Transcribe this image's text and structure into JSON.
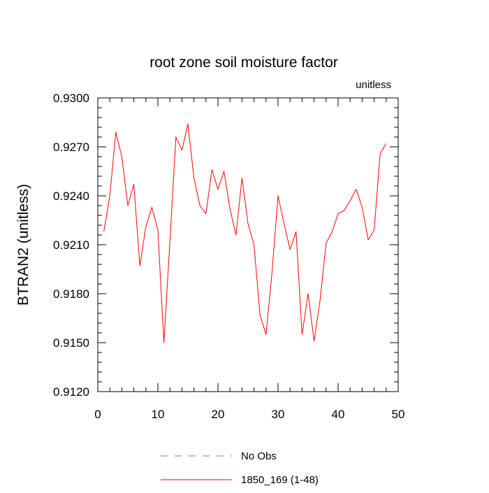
{
  "chart_data": {
    "type": "line",
    "title": "root zone soil moisture factor",
    "units_label": "unitless",
    "ylabel": "BTRAN2  (unitless)",
    "xlabel": "",
    "xlim": [
      0,
      50
    ],
    "ylim": [
      0.912,
      0.93
    ],
    "x_ticks": [
      0,
      10,
      20,
      30,
      40,
      50
    ],
    "y_ticks": [
      0.912,
      0.915,
      0.918,
      0.921,
      0.924,
      0.927,
      0.93
    ],
    "y_tick_labels": [
      "0.9120",
      "0.9150",
      "0.9180",
      "0.9210",
      "0.9240",
      "0.9270",
      "0.9300"
    ],
    "legend": [
      {
        "label": "No Obs",
        "color": "#6b6bff",
        "style": "dashed"
      },
      {
        "label": "1850_169 (1-48)",
        "color": "#ff0000",
        "style": "solid"
      }
    ],
    "series": [
      {
        "name": "1850_169 (1-48)",
        "color": "#ff0000",
        "x": [
          1,
          2,
          3,
          4,
          5,
          6,
          7,
          8,
          9,
          10,
          11,
          12,
          13,
          14,
          15,
          16,
          17,
          18,
          19,
          20,
          21,
          22,
          23,
          24,
          25,
          26,
          27,
          28,
          29,
          30,
          31,
          32,
          33,
          34,
          35,
          36,
          37,
          38,
          39,
          40,
          41,
          42,
          43,
          44,
          45,
          46,
          47,
          48
        ],
        "values": [
          0.9218,
          0.924,
          0.9279,
          0.9264,
          0.9234,
          0.9247,
          0.9197,
          0.9221,
          0.9233,
          0.9219,
          0.915,
          0.9212,
          0.9276,
          0.9268,
          0.9284,
          0.9251,
          0.9234,
          0.9229,
          0.9256,
          0.9244,
          0.9255,
          0.9232,
          0.9216,
          0.9251,
          0.9223,
          0.921,
          0.9167,
          0.9155,
          0.9193,
          0.924,
          0.9223,
          0.9207,
          0.9218,
          0.9155,
          0.918,
          0.9151,
          0.9176,
          0.9211,
          0.9218,
          0.9229,
          0.9231,
          0.9237,
          0.9244,
          0.9233,
          0.9213,
          0.9219,
          0.9266,
          0.9272
        ]
      }
    ]
  }
}
